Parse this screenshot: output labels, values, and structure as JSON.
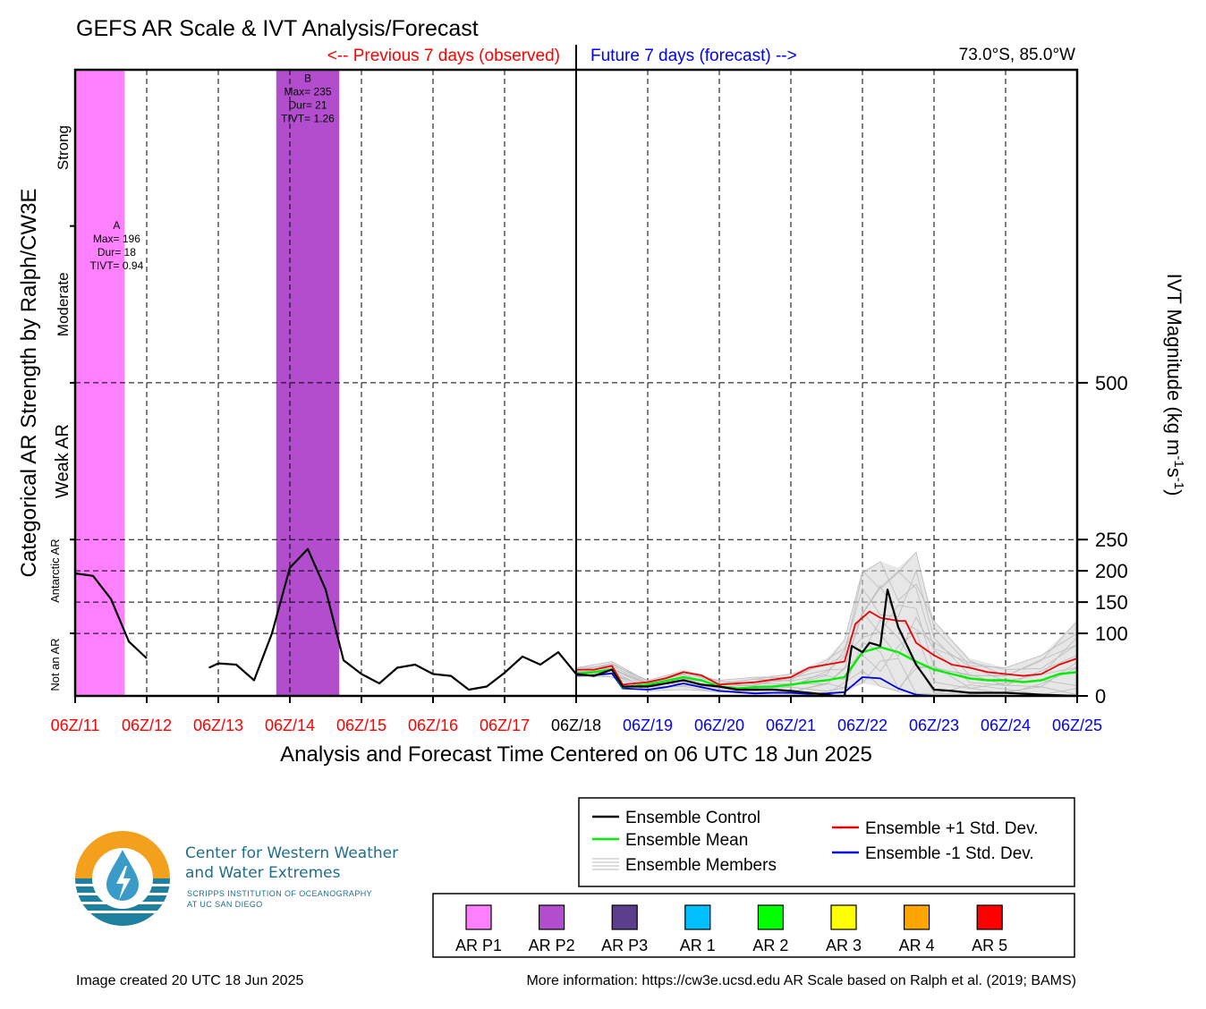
{
  "title": "GEFS AR Scale & IVT Analysis/Forecast",
  "header": {
    "previous_label": "<-- Previous 7 days (observed)",
    "future_label": "Future 7 days (forecast) -->",
    "location": "73.0°S, 85.0°W"
  },
  "colors": {
    "observed": "#ff0000",
    "forecast": "#0000ff",
    "control": "#000000",
    "mean": "#00ee00",
    "plus_std": "#ee0000",
    "minus_std": "#0000dd",
    "members": "#bbbbbb",
    "ar_p1": "#ff80ff",
    "ar_p2": "#b24ece",
    "ar_p3": "#5b3f8c",
    "ar_1": "#00bfff",
    "ar_2": "#00ff00",
    "ar_3": "#ffff00",
    "ar_4": "#ffa500",
    "ar_5": "#ff0000"
  },
  "chart_data": {
    "type": "line",
    "xlabel": "Analysis and Forecast Time Centered on 06 UTC 18 Jun 2025",
    "ylabel_left": "Categorical AR Strength by Ralph/CW3E",
    "ylabel_right_parts": [
      "IVT Magnitude (kg m",
      "-1",
      "s",
      "-1",
      ")"
    ],
    "x_unit": "days",
    "xlim": [
      0,
      14
    ],
    "x_ticks": [
      {
        "x": 0,
        "label": "06Z/11",
        "period": "observed"
      },
      {
        "x": 1,
        "label": "06Z/12",
        "period": "observed"
      },
      {
        "x": 2,
        "label": "06Z/13",
        "period": "observed"
      },
      {
        "x": 3,
        "label": "06Z/14",
        "period": "observed"
      },
      {
        "x": 4,
        "label": "06Z/15",
        "period": "observed"
      },
      {
        "x": 5,
        "label": "06Z/16",
        "period": "observed"
      },
      {
        "x": 6,
        "label": "06Z/17",
        "period": "observed"
      },
      {
        "x": 7,
        "label": "06Z/18",
        "period": "current"
      },
      {
        "x": 8,
        "label": "06Z/19",
        "period": "forecast"
      },
      {
        "x": 9,
        "label": "06Z/20",
        "period": "forecast"
      },
      {
        "x": 10,
        "label": "06Z/21",
        "period": "forecast"
      },
      {
        "x": 11,
        "label": "06Z/22",
        "period": "forecast"
      },
      {
        "x": 12,
        "label": "06Z/23",
        "period": "forecast"
      },
      {
        "x": 13,
        "label": "06Z/24",
        "period": "forecast"
      },
      {
        "x": 14,
        "label": "06Z/25",
        "period": "forecast"
      }
    ],
    "y_ticks": [
      {
        "value": 0,
        "label": "0"
      },
      {
        "value": 100,
        "label": "100"
      },
      {
        "value": 150,
        "label": "150"
      },
      {
        "value": 200,
        "label": "200"
      },
      {
        "value": 250,
        "label": "250"
      },
      {
        "value": 500,
        "label": "500"
      }
    ],
    "dashed_levels": [
      100,
      150,
      200,
      250,
      500
    ],
    "categories": [
      {
        "label": "Not an AR",
        "y_center": 50,
        "size": "small"
      },
      {
        "label": "Antarctic AR",
        "y_center": 200,
        "size": "small"
      },
      {
        "label": "Weak AR",
        "y_center": 375,
        "size": "large"
      },
      {
        "label": "Moderate",
        "y_center": 625,
        "size": "medium"
      },
      {
        "label": "Strong",
        "y_center": 875,
        "size": "medium"
      }
    ],
    "ar_events": [
      {
        "id": "A",
        "x_start": 0,
        "x_end": 0.69,
        "category": "ar_p1",
        "label_x": 0.58,
        "label_y": 745,
        "lines": [
          "A",
          "Max= 196",
          "Dur= 18",
          "TIVT= 0.94"
        ]
      },
      {
        "id": "B",
        "x_start": 2.81,
        "x_end": 3.69,
        "category": "ar_p2",
        "label_x": 3.25,
        "label_y": 980,
        "lines": [
          "B",
          "Max= 235",
          "Dur= 21",
          "TIVT= 1.26"
        ]
      }
    ],
    "series": [
      {
        "name": "Ensemble Control",
        "role": "control",
        "segments": [
          {
            "x": [
              0,
              0.25,
              0.5,
              0.75,
              1.0
            ],
            "y": [
              196,
              192,
              155,
              87,
              60
            ]
          },
          {
            "x": [
              1.87,
              2.0,
              2.25,
              2.5,
              2.75,
              3.0,
              3.25,
              3.5,
              3.75,
              4.0,
              4.25,
              4.5,
              4.75,
              5.0,
              5.25,
              5.5,
              5.75,
              6.0,
              6.25,
              6.5,
              6.75,
              7.0
            ],
            "y": [
              45,
              52,
              50,
              25,
              100,
              205,
              235,
              170,
              57,
              35,
              20,
              45,
              50,
              35,
              32,
              10,
              15,
              37,
              63,
              50,
              70,
              35
            ]
          },
          {
            "x": [
              7.0,
              7.25,
              7.5,
              7.65,
              8.0,
              8.5,
              8.75,
              9.0,
              9.25,
              9.5,
              9.75,
              10.0,
              10.25,
              10.5,
              10.62,
              10.75,
              10.85,
              11.0,
              11.1,
              11.25,
              11.35,
              11.5,
              11.75,
              12.0,
              12.25,
              12.5,
              12.75,
              13.0,
              13.5,
              14.0
            ],
            "y": [
              35,
              32,
              42,
              15,
              15,
              25,
              18,
              15,
              10,
              10,
              10,
              8,
              5,
              2,
              0,
              0,
              80,
              70,
              85,
              80,
              170,
              110,
              50,
              10,
              8,
              5,
              5,
              5,
              2,
              0
            ]
          }
        ]
      },
      {
        "name": "Ensemble Mean",
        "role": "mean",
        "segments": [
          {
            "x": [
              7.0,
              7.25,
              7.5,
              7.65,
              8.0,
              8.5,
              8.75,
              9.0,
              9.25,
              9.5,
              9.75,
              10.0,
              10.25,
              10.5,
              10.75,
              11.0,
              11.25,
              11.5,
              11.75,
              12.0,
              12.25,
              12.5,
              12.75,
              13.0,
              13.25,
              13.5,
              13.75,
              14.0
            ],
            "y": [
              36,
              38,
              42,
              14,
              18,
              30,
              25,
              15,
              12,
              14,
              15,
              18,
              22,
              25,
              30,
              70,
              78,
              70,
              55,
              42,
              35,
              28,
              25,
              25,
              22,
              25,
              35,
              38
            ]
          }
        ]
      },
      {
        "name": "Ensemble +1 Std. Dev.",
        "role": "plus_std",
        "segments": [
          {
            "x": [
              7.0,
              7.25,
              7.5,
              7.65,
              8.0,
              8.25,
              8.5,
              8.75,
              9.0,
              9.25,
              9.5,
              9.75,
              10.0,
              10.25,
              10.5,
              10.75,
              10.9,
              11.1,
              11.25,
              11.5,
              11.6,
              11.75,
              12.0,
              12.25,
              12.5,
              12.75,
              13.0,
              13.25,
              13.5,
              13.75,
              14.0
            ],
            "y": [
              42,
              42,
              48,
              18,
              22,
              28,
              38,
              33,
              18,
              20,
              22,
              26,
              30,
              45,
              50,
              55,
              115,
              135,
              125,
              120,
              120,
              85,
              65,
              50,
              45,
              38,
              35,
              32,
              35,
              50,
              60
            ]
          }
        ]
      },
      {
        "name": "Ensemble -1 Std. Dev.",
        "role": "minus_std",
        "segments": [
          {
            "x": [
              7.0,
              7.25,
              7.5,
              7.65,
              8.0,
              8.25,
              8.5,
              8.75,
              9.0,
              9.25,
              9.5,
              9.75,
              10.0,
              10.25,
              10.5,
              10.75,
              11.0,
              11.25,
              11.5,
              11.75,
              12.0,
              12.5,
              13.0,
              13.5,
              14.0
            ],
            "y": [
              33,
              33,
              36,
              12,
              10,
              14,
              20,
              14,
              8,
              6,
              4,
              5,
              5,
              3,
              4,
              6,
              30,
              28,
              12,
              2,
              0,
              0,
              0,
              0,
              0
            ]
          }
        ]
      }
    ],
    "members_envelope": {
      "x": [
        7.0,
        7.5,
        8.0,
        8.5,
        9.0,
        9.5,
        10.0,
        10.5,
        10.75,
        11.0,
        11.25,
        11.5,
        11.75,
        12.0,
        12.5,
        13.0,
        13.5,
        14.0
      ],
      "y_low": [
        30,
        30,
        8,
        10,
        5,
        3,
        3,
        3,
        5,
        20,
        15,
        5,
        2,
        2,
        2,
        2,
        2,
        2
      ],
      "y_high": [
        45,
        55,
        25,
        42,
        25,
        30,
        35,
        60,
        90,
        200,
        215,
        205,
        230,
        120,
        60,
        45,
        65,
        120
      ]
    }
  },
  "legend": {
    "items": [
      {
        "label": "Ensemble Control",
        "role": "control"
      },
      {
        "label": "Ensemble Mean",
        "role": "mean"
      },
      {
        "label": "Ensemble Members",
        "role": "members"
      },
      {
        "label": "Ensemble +1 Std. Dev.",
        "role": "plus_std"
      },
      {
        "label": "Ensemble -1 Std. Dev.",
        "role": "minus_std"
      }
    ],
    "scale": [
      {
        "label": "AR P1",
        "key": "ar_p1"
      },
      {
        "label": "AR P2",
        "key": "ar_p2"
      },
      {
        "label": "AR P3",
        "key": "ar_p3"
      },
      {
        "label": "AR 1",
        "key": "ar_1"
      },
      {
        "label": "AR 2",
        "key": "ar_2"
      },
      {
        "label": "AR 3",
        "key": "ar_3"
      },
      {
        "label": "AR 4",
        "key": "ar_4"
      },
      {
        "label": "AR 5",
        "key": "ar_5"
      }
    ]
  },
  "logo": {
    "line1": "Center for Western Weather",
    "line2": "and Water Extremes",
    "line3": "SCRIPPS INSTITUTION OF OCEANOGRAPHY",
    "line4": "AT UC SAN DIEGO"
  },
  "footer": {
    "created": "Image created 20 UTC 18 Jun 2025",
    "info": "More information: https://cw3e.ucsd.edu AR Scale based on Ralph et al. (2019; BAMS)"
  }
}
